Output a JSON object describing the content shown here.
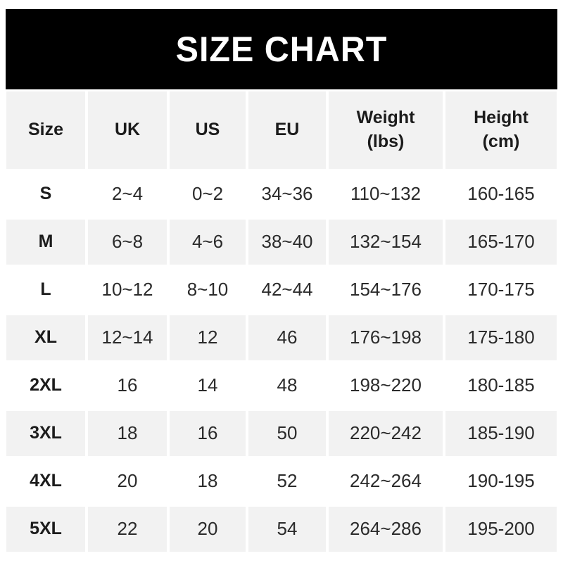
{
  "banner": {
    "title": "SIZE CHART",
    "bg_color": "#000000",
    "text_color": "#ffffff"
  },
  "colors": {
    "cell_gray": "#f2f2f2",
    "row_white": "#ffffff",
    "header_text": "#1c1c1c",
    "cell_text": "#2b2b2b"
  },
  "table": {
    "header": {
      "size": "Size",
      "uk": "UK",
      "us": "US",
      "eu": "EU",
      "weight": "Weight\n(lbs)",
      "height": "Height\n(cm)"
    },
    "rows": [
      {
        "size": "S",
        "uk": "2~4",
        "us": "0~2",
        "eu": "34~36",
        "weight": "110~132",
        "height": "160-165"
      },
      {
        "size": "M",
        "uk": "6~8",
        "us": "4~6",
        "eu": "38~40",
        "weight": "132~154",
        "height": "165-170"
      },
      {
        "size": "L",
        "uk": "10~12",
        "us": "8~10",
        "eu": "42~44",
        "weight": "154~176",
        "height": "170-175"
      },
      {
        "size": "XL",
        "uk": "12~14",
        "us": "12",
        "eu": "46",
        "weight": "176~198",
        "height": "175-180"
      },
      {
        "size": "2XL",
        "uk": "16",
        "us": "14",
        "eu": "48",
        "weight": "198~220",
        "height": "180-185"
      },
      {
        "size": "3XL",
        "uk": "18",
        "us": "16",
        "eu": "50",
        "weight": "220~242",
        "height": "185-190"
      },
      {
        "size": "4XL",
        "uk": "20",
        "us": "18",
        "eu": "52",
        "weight": "242~264",
        "height": "190-195"
      },
      {
        "size": "5XL",
        "uk": "22",
        "us": "20",
        "eu": "54",
        "weight": "264~286",
        "height": "195-200"
      }
    ]
  },
  "chart_data": {
    "type": "table",
    "title": "SIZE CHART",
    "columns": [
      "Size",
      "UK",
      "US",
      "EU",
      "Weight (lbs)",
      "Height (cm)"
    ],
    "rows": [
      [
        "S",
        "2~4",
        "0~2",
        "34~36",
        "110~132",
        "160-165"
      ],
      [
        "M",
        "6~8",
        "4~6",
        "38~40",
        "132~154",
        "165-170"
      ],
      [
        "L",
        "10~12",
        "8~10",
        "42~44",
        "154~176",
        "170-175"
      ],
      [
        "XL",
        "12~14",
        "12",
        "46",
        "176~198",
        "175-180"
      ],
      [
        "2XL",
        "16",
        "14",
        "48",
        "198~220",
        "180-185"
      ],
      [
        "3XL",
        "18",
        "16",
        "50",
        "220~242",
        "185-190"
      ],
      [
        "4XL",
        "20",
        "18",
        "52",
        "242~264",
        "190-195"
      ],
      [
        "5XL",
        "22",
        "20",
        "54",
        "264~286",
        "195-200"
      ]
    ],
    "layout": {
      "banner_bg": "#000000",
      "stripe_pattern": "header gray, then rows alternate white/gray starting white",
      "weight_separator": "~",
      "height_separator": "-"
    }
  }
}
